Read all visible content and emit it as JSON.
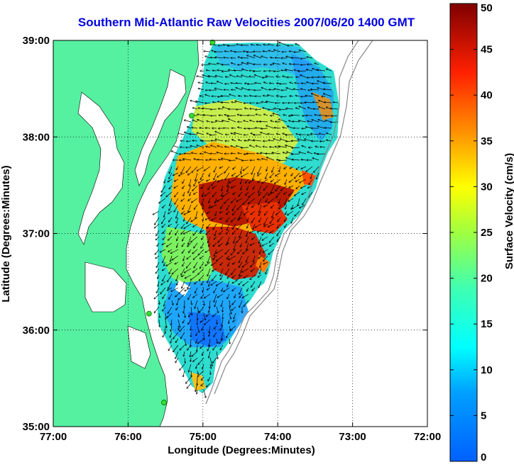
{
  "title": "Southern Mid-Atlantic Raw Velocities 2007/06/20 1400 GMT",
  "map": {
    "xlabel": "Longitude (Degrees:Minutes)",
    "ylabel": "Latitude (Degrees:Minutes)",
    "lon_range": [
      -77,
      -72
    ],
    "lat_range": [
      35,
      39
    ],
    "x_ticks": [
      {
        "value": -77,
        "label": "77:00"
      },
      {
        "value": -76,
        "label": "76:00"
      },
      {
        "value": -75,
        "label": "75:00"
      },
      {
        "value": -74,
        "label": "74:00"
      },
      {
        "value": -73,
        "label": "73:00"
      },
      {
        "value": -72,
        "label": "72:00"
      }
    ],
    "y_ticks": [
      {
        "value": 39,
        "label": "39:00"
      },
      {
        "value": 38,
        "label": "38:00"
      },
      {
        "value": 37,
        "label": "37:00"
      },
      {
        "value": 36,
        "label": "36:00"
      },
      {
        "value": 35,
        "label": "35:00"
      }
    ],
    "grid": "dotted",
    "land_color": "#55f0a0",
    "water_color": "#ffffff",
    "station_color": "#33dd33",
    "stations": [
      {
        "lon": -74.87,
        "lat": 38.98
      },
      {
        "lon": -75.15,
        "lat": 38.22
      },
      {
        "lon": -75.72,
        "lat": 36.17
      },
      {
        "lon": -75.52,
        "lat": 35.25
      }
    ]
  },
  "colorbar": {
    "label": "Surface Velocity (cm/s)",
    "min": 0,
    "max": 50,
    "ticks": [
      {
        "value": 50,
        "label": "50"
      },
      {
        "value": 45,
        "label": "45"
      },
      {
        "value": 40,
        "label": "40"
      },
      {
        "value": 35,
        "label": "35"
      },
      {
        "value": 30,
        "label": "30"
      },
      {
        "value": 25,
        "label": "25"
      },
      {
        "value": 20,
        "label": "20"
      },
      {
        "value": 15,
        "label": "15"
      },
      {
        "value": 10,
        "label": "10"
      },
      {
        "value": 5,
        "label": "5"
      },
      {
        "value": 0,
        "label": "0"
      }
    ],
    "colormap": "jet"
  }
}
